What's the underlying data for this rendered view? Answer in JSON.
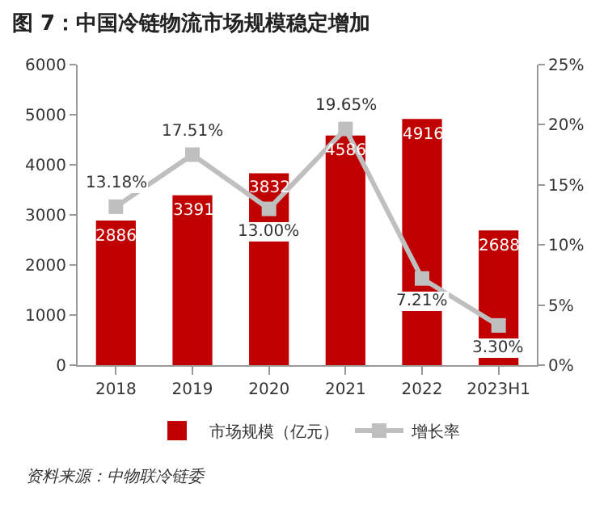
{
  "chart_data": {
    "type": "bar",
    "title": "图 7：中国冷链物流市场规模稳定增加",
    "categories": [
      "2018",
      "2019",
      "2020",
      "2021",
      "2022",
      "2023H1"
    ],
    "series": [
      {
        "name": "市场规模（亿元）",
        "color": "#c00000",
        "values": [
          2886,
          3391,
          3832,
          4586,
          4916,
          2688
        ],
        "value_labels": [
          "2886",
          "3391",
          "3832",
          "4586",
          "4916",
          "2688"
        ]
      },
      {
        "name": "增长率",
        "type": "line",
        "axis": "y2",
        "color": "#bfbfbf",
        "values": [
          13.18,
          17.51,
          13.0,
          19.65,
          7.21,
          3.3
        ],
        "value_labels": [
          "13.18%",
          "17.51%",
          "13.00%",
          "19.65%",
          "7.21%",
          "3.30%"
        ]
      }
    ],
    "ylim": [
      0,
      6000
    ],
    "yticks": [
      0,
      1000,
      2000,
      3000,
      4000,
      5000,
      6000
    ],
    "y2lim": [
      0,
      25
    ],
    "y2ticks": [
      {
        "value": 0,
        "label": "0%"
      },
      {
        "value": 5,
        "label": "5%"
      },
      {
        "value": 10,
        "label": "10%"
      },
      {
        "value": 15,
        "label": "15%"
      },
      {
        "value": 20,
        "label": "20%"
      },
      {
        "value": 25,
        "label": "25%"
      }
    ],
    "grid": false,
    "legend": "bottom",
    "marker": "square",
    "line_style": "solid",
    "annotations": [
      "资料来源：中物联冷链委"
    ]
  }
}
